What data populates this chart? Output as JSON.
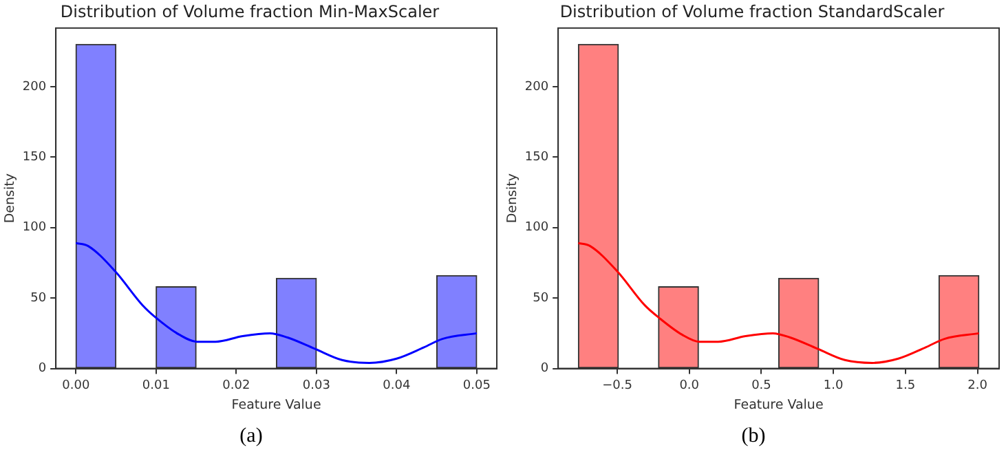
{
  "chart_data": [
    {
      "type": "histogram",
      "title": "Distribution of Volume fraction Min-MaxScaler",
      "xlabel": "Feature Value",
      "ylabel": "Density",
      "annotations": [
        "(a)"
      ],
      "bins": [
        0,
        0.005,
        0.01,
        0.015,
        0.02,
        0.025,
        0.03,
        0.035,
        0.04,
        0.045,
        0.05
      ],
      "xlim": [
        -0.0025,
        0.0525
      ],
      "ylim": [
        0,
        241.5
      ],
      "xticks": [
        {
          "value": 0,
          "label": "0.00"
        },
        {
          "value": 0.01,
          "label": "0.01"
        },
        {
          "value": 0.02,
          "label": "0.02"
        },
        {
          "value": 0.03,
          "label": "0.03"
        },
        {
          "value": 0.04,
          "label": "0.04"
        },
        {
          "value": 0.05,
          "label": "0.05"
        }
      ],
      "yticks": [
        0,
        50,
        100,
        150,
        200
      ],
      "grid": false,
      "legend": false,
      "series": [
        {
          "type": "histogram",
          "color": "#8080ff",
          "values": [
            230,
            0,
            58,
            0,
            0,
            64,
            0,
            0,
            0,
            66
          ]
        },
        {
          "type": "line",
          "color": "#0000ff",
          "marker": "none",
          "x": [
            0,
            0.0015,
            0.0049,
            0.0083,
            0.01,
            0.0129,
            0.0151,
            0.0174,
            0.0208,
            0.0242,
            0.0264,
            0.0298,
            0.0332,
            0.0366,
            0.04,
            0.0434,
            0.0457,
            0.05
          ],
          "values": [
            89,
            87,
            69,
            45,
            36,
            24,
            19,
            19,
            23,
            25,
            22,
            14,
            6,
            4,
            7,
            15,
            21,
            25
          ]
        }
      ]
    },
    {
      "type": "histogram",
      "title": "Distribution of Volume fraction StandardScaler",
      "xlabel": "Feature Value",
      "ylabel": "Density",
      "annotations": [
        "(b)"
      ],
      "bins": [
        -0.77,
        -0.492,
        -0.214,
        0.064,
        0.342,
        0.62,
        0.898,
        1.176,
        1.454,
        1.732,
        2.01
      ],
      "xlim": [
        -0.91,
        2.15
      ],
      "ylim": [
        0,
        241.5
      ],
      "xticks": [
        {
          "value": -0.5,
          "label": "−0.5"
        },
        {
          "value": 0,
          "label": "0.0"
        },
        {
          "value": 0.5,
          "label": "0.5"
        },
        {
          "value": 1,
          "label": "1.0"
        },
        {
          "value": 1.5,
          "label": "1.5"
        },
        {
          "value": 2,
          "label": "2.0"
        }
      ],
      "yticks": [
        0,
        50,
        100,
        150,
        200
      ],
      "grid": false,
      "legend": false,
      "series": [
        {
          "type": "histogram",
          "color": "#ff8080",
          "values": [
            230,
            0,
            58,
            0,
            0,
            64,
            0,
            0,
            0,
            66
          ]
        },
        {
          "type": "line",
          "color": "#ff0000",
          "marker": "none",
          "x": [
            -0.77,
            -0.69,
            -0.5,
            -0.31,
            -0.21,
            -0.05,
            0.07,
            0.2,
            0.39,
            0.58,
            0.7,
            0.89,
            1.08,
            1.27,
            1.45,
            1.64,
            1.77,
            2.01
          ],
          "values": [
            89,
            87,
            69,
            45,
            36,
            24,
            19,
            19,
            23,
            25,
            22,
            14,
            6,
            4,
            7,
            15,
            21,
            25
          ]
        }
      ]
    }
  ]
}
